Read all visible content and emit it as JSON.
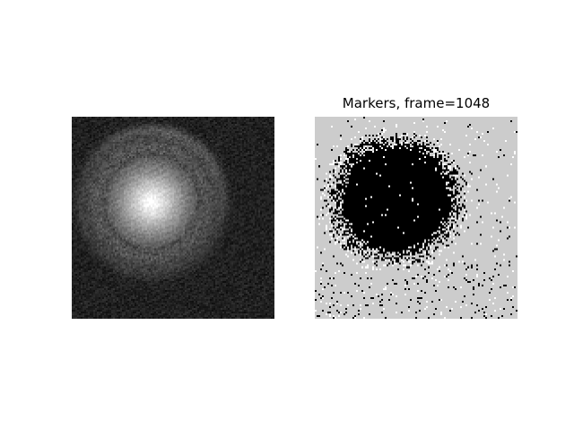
{
  "figure": {
    "background_color": "#ffffff",
    "panels": [
      {
        "name": "raw-frame-image",
        "title": "",
        "colormap": "gray",
        "content": "grayscale microscopy frame: bright circular blob with a faint surrounding ring on a dark noisy background"
      },
      {
        "name": "markers-image",
        "title": "Markers, frame=1048",
        "colors": {
          "marker": "#000000",
          "background": "#cccccc",
          "noise": "#ffffff"
        },
        "content": "binary marker mask: large black disc with scattered black speckle on a light gray field"
      }
    ]
  }
}
